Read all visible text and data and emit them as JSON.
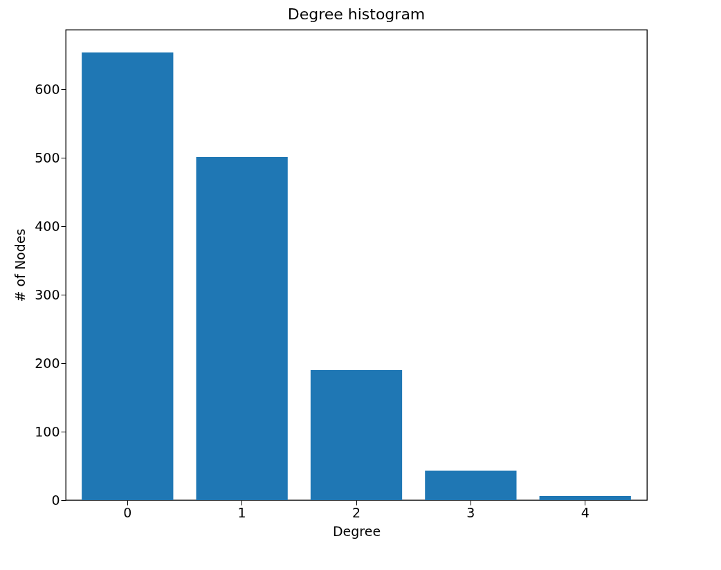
{
  "chart_data": {
    "type": "bar",
    "title": "Degree histogram",
    "xlabel": "Degree",
    "ylabel": "# of Nodes",
    "categories": [
      "0",
      "1",
      "2",
      "3",
      "4"
    ],
    "values": [
      654,
      501,
      190,
      43,
      6
    ],
    "color": "#1f77b4",
    "ylim": [
      0,
      687
    ],
    "yticks": [
      0,
      100,
      200,
      300,
      400,
      500,
      600
    ],
    "grid": false
  }
}
